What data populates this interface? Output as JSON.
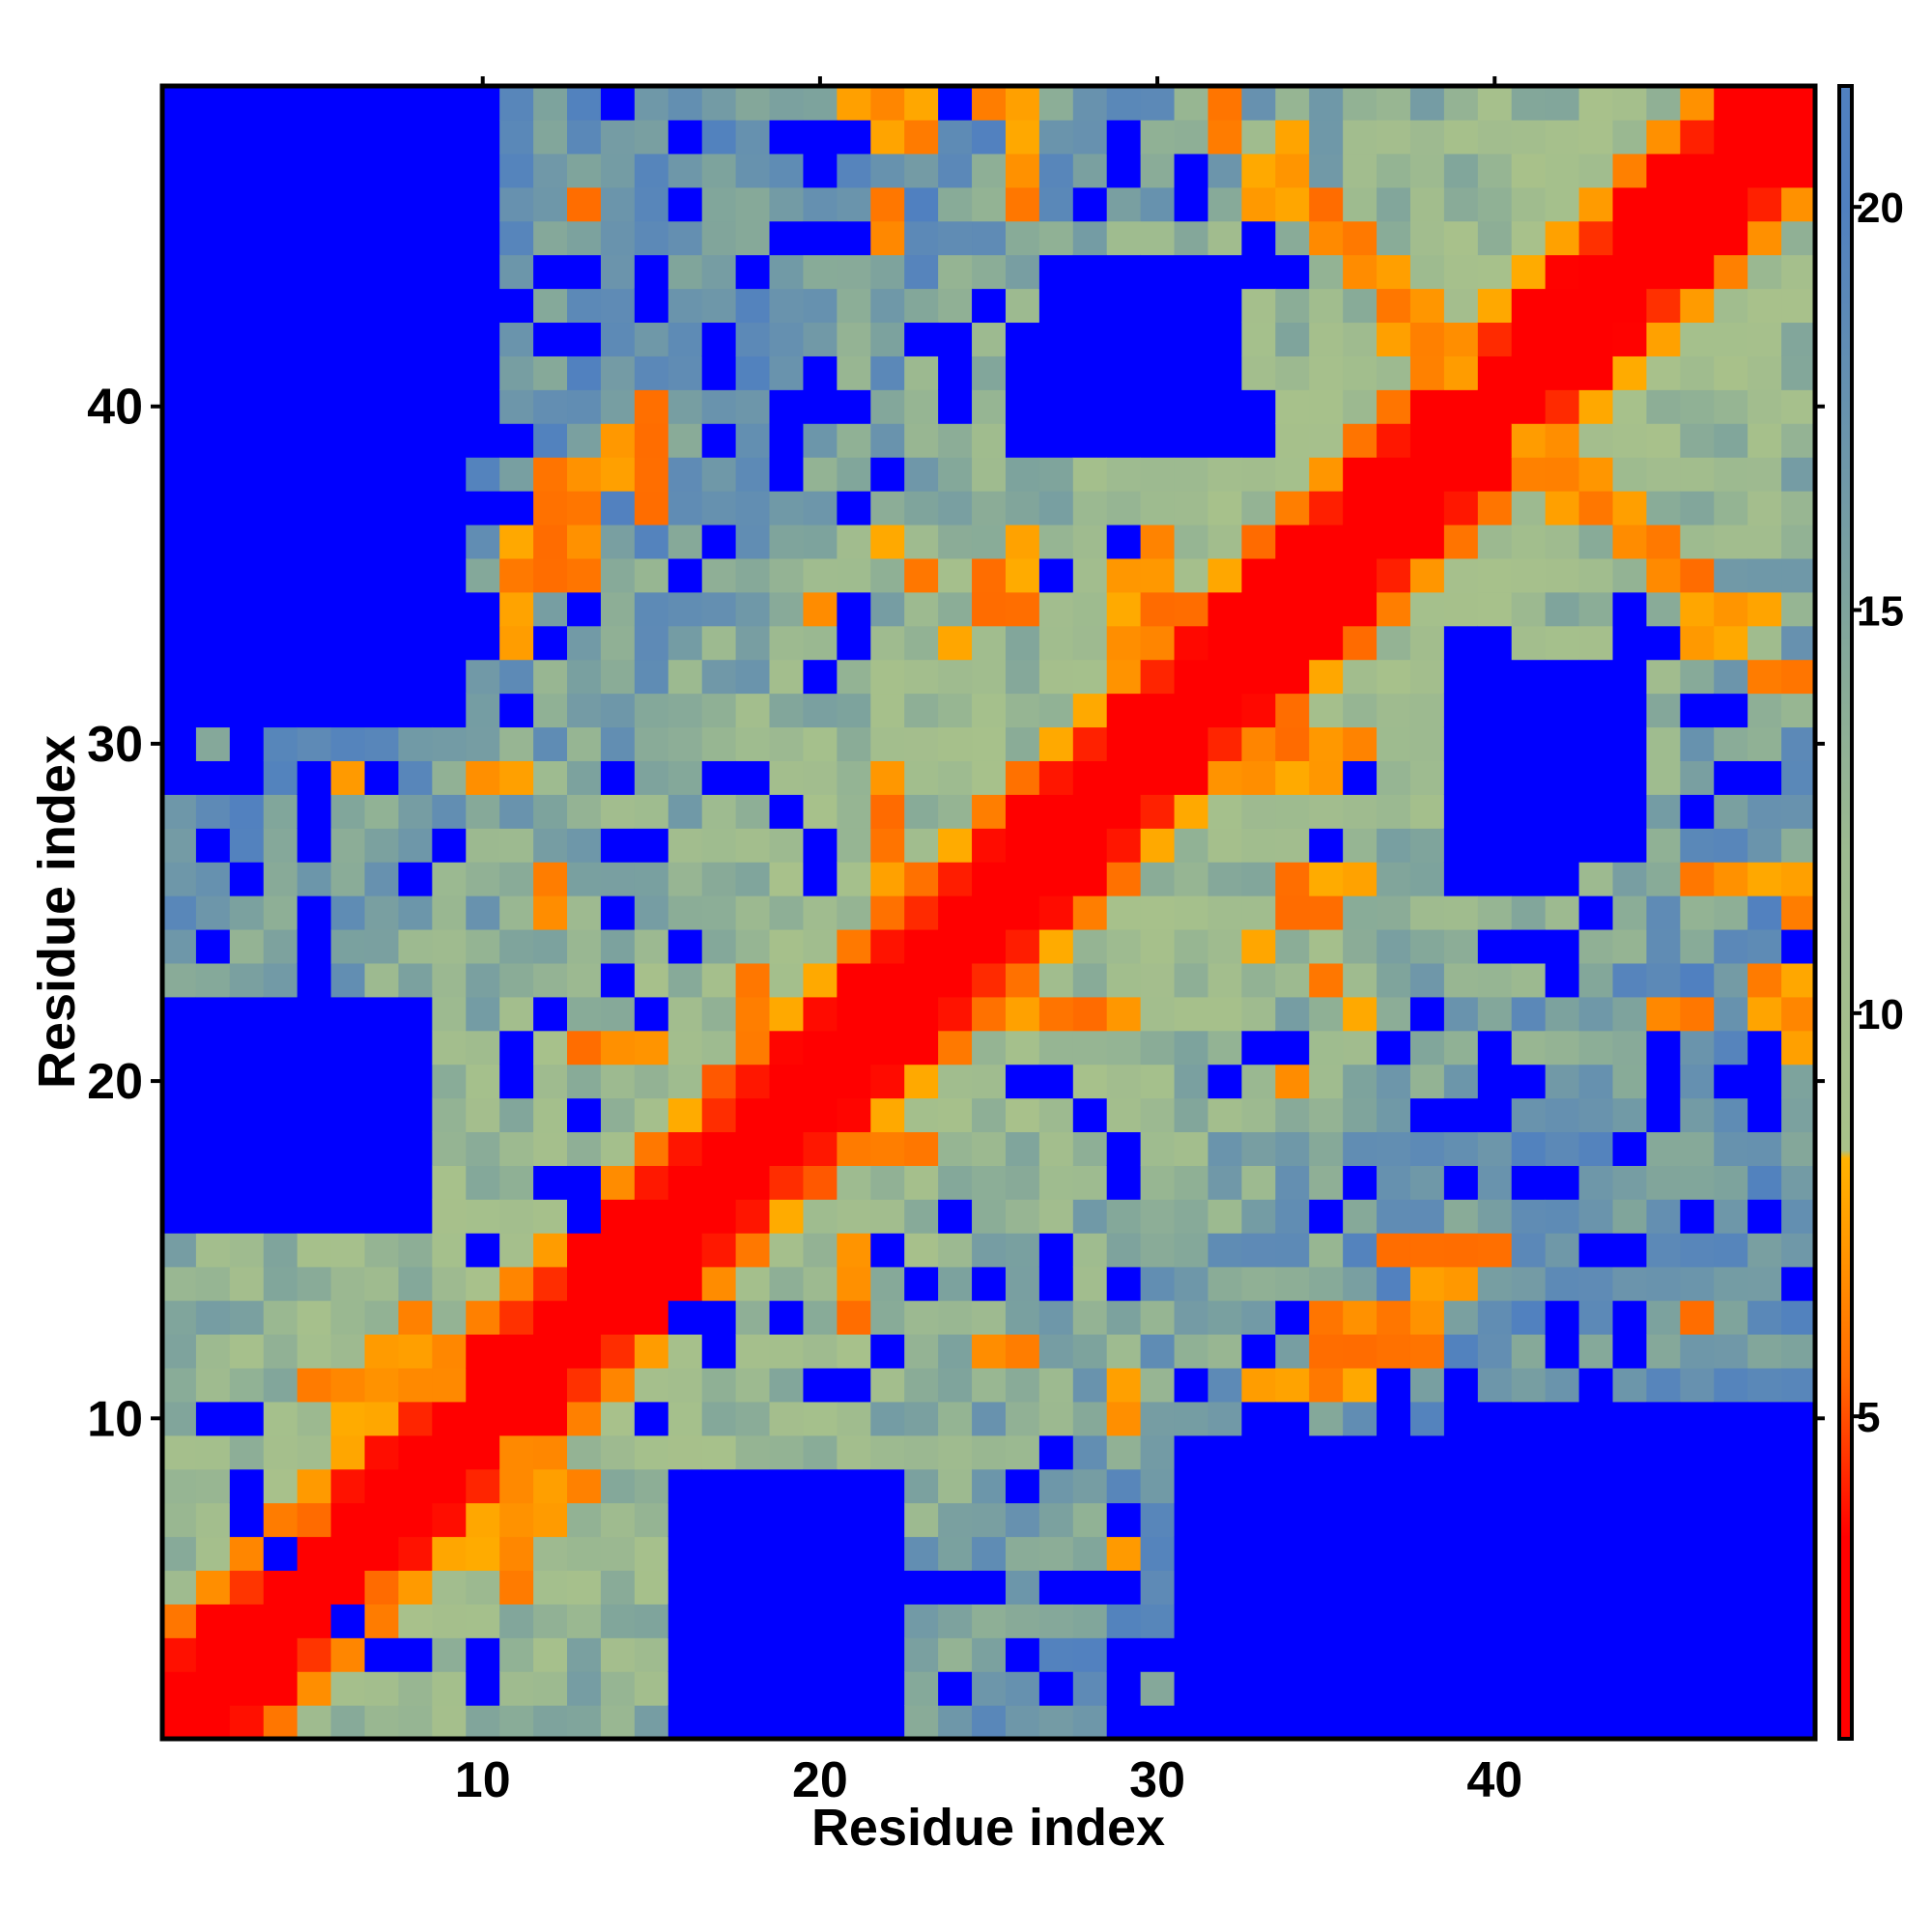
{
  "chart_data": {
    "type": "heatmap",
    "title": "",
    "xlabel": "Residue index",
    "ylabel": "Residue index",
    "n_residues": 49,
    "x_range": [
      0.5,
      49.5
    ],
    "y_range": [
      0.5,
      49.5
    ],
    "x_ticks": [
      10,
      20,
      30,
      40
    ],
    "y_ticks": [
      10,
      20,
      30,
      40
    ],
    "colorbar": {
      "range": [
        1,
        21.5
      ],
      "ticks": [
        5,
        10,
        15,
        20
      ],
      "saturation_threshold": 20,
      "saturated_color": "#0000ff",
      "colors": [
        {
          "value": 1,
          "color": "#ff0000"
        },
        {
          "value": 3.5,
          "color": "#ff0000"
        },
        {
          "value": 5.5,
          "color": "#ff6a00"
        },
        {
          "value": 7.2,
          "color": "#ff9a00"
        },
        {
          "value": 8.2,
          "color": "#ffb300"
        },
        {
          "value": 8.3,
          "color": "#a9c28a"
        },
        {
          "value": 12,
          "color": "#9dba90"
        },
        {
          "value": 15,
          "color": "#7fa49c"
        },
        {
          "value": 20,
          "color": "#5080c0"
        },
        {
          "value": 21.5,
          "color": "#5080c0"
        }
      ]
    },
    "matrix_note": "",
    "blocks_far": [
      {
        "i": [
          1,
          9
        ],
        "j": [
          31,
          49
        ]
      },
      {
        "i": [
          1,
          10
        ],
        "j": [
          40,
          49
        ]
      },
      {
        "i": [
          16,
          22
        ],
        "j": [
          1,
          8
        ]
      },
      {
        "i": [
          38,
          49
        ],
        "j": [
          1,
          6
        ]
      },
      {
        "i": [
          40,
          44
        ],
        "j": [
          27,
          32
        ]
      },
      {
        "i": [
          26,
          32
        ],
        "j": [
          39,
          42
        ]
      }
    ],
    "contacts": [
      [
        11,
        5
      ],
      [
        11,
        6
      ],
      [
        10,
        6
      ],
      [
        12,
        7
      ],
      [
        12,
        8
      ],
      [
        12,
        9
      ],
      [
        13,
        8
      ],
      [
        21,
        13
      ],
      [
        21,
        14
      ],
      [
        21,
        15
      ],
      [
        22,
        18
      ],
      [
        22,
        19
      ],
      [
        23,
        18
      ],
      [
        26,
        12
      ],
      [
        25,
        12
      ],
      [
        35,
        11
      ],
      [
        36,
        11
      ],
      [
        37,
        12
      ],
      [
        38,
        12
      ],
      [
        38,
        13
      ],
      [
        38,
        14
      ],
      [
        39,
        14
      ],
      [
        40,
        15
      ],
      [
        36,
        22
      ],
      [
        36,
        26
      ],
      [
        35,
        26
      ],
      [
        35,
        29
      ],
      [
        34,
        29
      ],
      [
        33,
        29
      ],
      [
        48,
        23
      ],
      [
        49,
        23
      ],
      [
        48,
        26
      ],
      [
        47,
        26
      ],
      [
        46,
        26
      ],
      [
        49,
        25
      ],
      [
        45,
        22
      ],
      [
        47,
        34
      ],
      [
        46,
        34
      ],
      [
        46,
        35
      ],
      [
        45,
        35
      ],
      [
        45,
        36
      ],
      [
        44,
        36
      ],
      [
        44,
        37
      ],
      [
        43,
        38
      ],
      [
        43,
        37
      ],
      [
        42,
        38
      ],
      [
        42,
        39
      ],
      [
        41,
        39
      ],
      [
        38,
        42
      ],
      [
        37,
        42
      ],
      [
        38,
        43
      ],
      [
        37,
        44
      ],
      [
        36,
        44
      ],
      [
        36,
        45
      ],
      [
        35,
        45
      ],
      [
        35,
        46
      ],
      [
        34,
        46
      ],
      [
        33,
        47
      ],
      [
        33,
        46
      ],
      [
        32,
        48
      ],
      [
        34,
        48
      ],
      [
        32,
        49
      ],
      [
        26,
        46
      ],
      [
        26,
        47
      ],
      [
        26,
        48
      ],
      [
        26,
        49
      ],
      [
        22,
        48
      ],
      [
        22,
        49
      ],
      [
        21,
        49
      ],
      [
        22,
        46
      ],
      [
        15,
        37
      ],
      [
        15,
        38
      ],
      [
        15,
        39
      ],
      [
        14,
        38
      ],
      [
        13,
        35
      ],
      [
        13,
        36
      ],
      [
        13,
        37
      ],
      [
        12,
        36
      ],
      [
        12,
        35
      ],
      [
        11,
        33
      ],
      [
        11,
        34
      ],
      [
        11,
        35
      ],
      [
        11,
        36
      ],
      [
        11,
        29
      ],
      [
        13,
        46
      ],
      [
        22,
        26
      ],
      [
        22,
        27
      ],
      [
        22,
        28
      ],
      [
        22,
        29
      ],
      [
        30,
        34
      ],
      [
        30,
        35
      ],
      [
        30,
        36
      ],
      [
        26,
        34
      ],
      [
        26,
        35
      ],
      [
        25,
        35
      ],
      [
        34,
        20
      ],
      [
        35,
        23
      ],
      [
        34,
        25
      ],
      [
        34,
        29
      ],
      [
        33,
        24
      ],
      [
        6,
        29
      ],
      [
        10,
        29
      ],
      [
        9,
        12
      ],
      [
        9,
        11
      ],
      [
        8,
        11
      ],
      [
        7,
        11
      ],
      [
        5,
        7
      ]
    ],
    "far_pairs": [
      [
        3,
        7
      ],
      [
        3,
        10
      ],
      [
        6,
        4
      ],
      [
        8,
        3
      ],
      [
        10,
        2
      ],
      [
        12,
        17
      ],
      [
        13,
        17
      ],
      [
        15,
        10
      ],
      [
        16,
        13
      ],
      [
        17,
        12
      ],
      [
        19,
        13
      ],
      [
        20,
        11
      ],
      [
        21,
        7
      ],
      [
        21,
        11
      ],
      [
        22,
        4
      ],
      [
        23,
        5
      ],
      [
        24,
        2
      ],
      [
        26,
        3
      ],
      [
        27,
        5
      ],
      [
        29,
        2
      ],
      [
        30,
        3
      ],
      [
        31,
        4
      ],
      [
        31,
        5
      ],
      [
        32,
        9
      ],
      [
        33,
        10
      ],
      [
        33,
        7
      ],
      [
        34,
        13
      ],
      [
        37,
        10
      ],
      [
        38,
        9
      ],
      [
        39,
        17
      ],
      [
        39,
        19
      ],
      [
        40,
        19
      ],
      [
        40,
        20
      ],
      [
        41,
        17
      ],
      [
        41,
        20
      ],
      [
        42,
        13
      ],
      [
        43,
        11
      ],
      [
        43,
        7
      ],
      [
        45,
        19
      ],
      [
        45,
        21
      ],
      [
        46,
        16
      ],
      [
        47,
        5
      ],
      [
        48,
        20
      ],
      [
        48,
        7
      ],
      [
        40,
        24
      ],
      [
        41,
        24
      ],
      [
        42,
        24
      ],
      [
        43,
        25
      ],
      [
        38,
        22
      ],
      [
        37,
        21
      ],
      [
        36,
        29
      ],
      [
        12,
        22
      ],
      [
        14,
        23
      ],
      [
        15,
        22
      ],
      [
        16,
        24
      ],
      [
        14,
        27
      ],
      [
        15,
        27
      ],
      [
        5,
        24
      ],
      [
        5,
        25
      ],
      [
        8,
        26
      ],
      [
        9,
        27
      ],
      [
        11,
        31
      ],
      [
        6,
        31
      ],
      [
        6,
        32
      ],
      [
        5,
        32
      ],
      [
        3,
        30
      ],
      [
        12,
        33
      ],
      [
        10,
        34
      ],
      [
        9,
        37
      ],
      [
        20,
        32
      ],
      [
        21,
        33
      ],
      [
        16,
        35
      ],
      [
        17,
        36
      ],
      [
        19,
        38
      ],
      [
        21,
        40
      ],
      [
        24,
        41
      ],
      [
        23,
        42
      ],
      [
        10,
        43
      ],
      [
        9,
        46
      ],
      [
        6,
        45
      ],
      [
        6,
        48
      ],
      [
        33,
        44
      ],
      [
        33,
        47
      ],
      [
        32,
        48
      ],
      [
        31,
        46
      ],
      [
        29,
        48
      ],
      [
        15,
        43
      ],
      [
        12,
        44
      ],
      [
        20,
        45
      ],
      [
        16,
        48
      ],
      [
        29,
        14
      ],
      [
        25,
        14
      ],
      [
        26,
        20
      ],
      [
        27,
        20
      ],
      [
        29,
        18
      ],
      [
        34,
        21
      ],
      [
        35,
        27
      ],
      [
        46,
        28
      ],
      [
        47,
        29
      ],
      [
        47,
        31
      ],
      [
        44,
        34
      ],
      [
        45,
        33
      ],
      [
        36,
        30
      ],
      [
        40,
        30
      ],
      [
        33,
        39
      ],
      [
        30,
        40
      ],
      [
        31,
        40
      ],
      [
        33,
        40
      ],
      [
        19,
        28
      ],
      [
        17,
        29
      ]
    ]
  }
}
